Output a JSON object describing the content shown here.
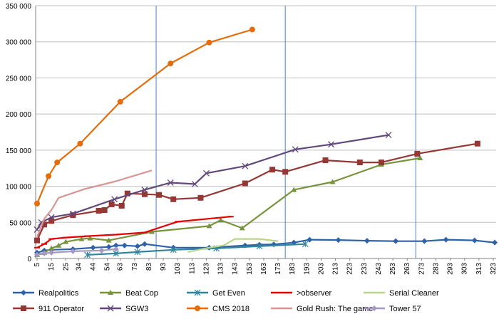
{
  "chart_data": {
    "type": "line",
    "title": "",
    "xlabel": "",
    "ylabel": "",
    "xlim": [
      4,
      325
    ],
    "ylim": [
      0,
      350000
    ],
    "grid": {
      "horizontal": true,
      "vertical": false
    },
    "legend_position": "bottom",
    "x_ticks": [
      "5",
      "15",
      "25",
      "34",
      "44",
      "54",
      "63",
      "73",
      "83",
      "93",
      "103",
      "113",
      "123",
      "133",
      "143",
      "153",
      "163",
      "173",
      "183",
      "193",
      "203",
      "213",
      "223",
      "233",
      "243",
      "253",
      "263",
      "273",
      "283",
      "293",
      "303",
      "313",
      "323"
    ],
    "y_ticks": [
      "0",
      "50 000",
      "100 000",
      "150 000",
      "200 000",
      "250 000",
      "300 000",
      "350 000"
    ],
    "reference_lines_x": [
      88,
      178,
      269
    ],
    "series": [
      {
        "name": "Realpolitics",
        "color": "#2E62A8",
        "marker": "diamond",
        "points": [
          [
            5,
            8000
          ],
          [
            10,
            11000
          ],
          [
            15,
            12000
          ],
          [
            30,
            13000
          ],
          [
            44,
            15000
          ],
          [
            55,
            16000
          ],
          [
            60,
            18000
          ],
          [
            66,
            18000
          ],
          [
            75,
            17000
          ],
          [
            80,
            20000
          ],
          [
            100,
            15000
          ],
          [
            125,
            15000
          ],
          [
            150,
            18000
          ],
          [
            160,
            19000
          ],
          [
            170,
            19500
          ],
          [
            184,
            22000
          ],
          [
            195,
            26000
          ],
          [
            215,
            25500
          ],
          [
            235,
            24500
          ],
          [
            255,
            24000
          ],
          [
            275,
            24000
          ],
          [
            290,
            26000
          ],
          [
            310,
            25000
          ],
          [
            324,
            22000
          ]
        ]
      },
      {
        "name": "Beat Cop",
        "color": "#77933C",
        "marker": "triangle",
        "points": [
          [
            5,
            5000
          ],
          [
            10,
            8000
          ],
          [
            15,
            14000
          ],
          [
            20,
            18000
          ],
          [
            25,
            23000
          ],
          [
            36,
            27000
          ],
          [
            42,
            28000
          ],
          [
            55,
            25000
          ],
          [
            85,
            37000
          ],
          [
            125,
            45000
          ],
          [
            133,
            53000
          ],
          [
            148,
            42000
          ],
          [
            184,
            95000
          ],
          [
            211,
            106000
          ],
          [
            245,
            130000
          ],
          [
            272,
            139000
          ]
        ]
      },
      {
        "name": "Get Even",
        "color": "#31859C",
        "marker": "asterisk",
        "points": [
          [
            40,
            5000
          ],
          [
            60,
            7000
          ],
          [
            75,
            9000
          ],
          [
            100,
            12000
          ],
          [
            130,
            14000
          ],
          [
            160,
            17000
          ],
          [
            192,
            20000
          ]
        ]
      },
      {
        "name": ">observer",
        "color": "#E60000",
        "marker": "dash",
        "points": [
          [
            5,
            15000
          ],
          [
            10,
            20000
          ],
          [
            15,
            27000
          ],
          [
            25,
            29000
          ],
          [
            40,
            31000
          ],
          [
            60,
            33000
          ],
          [
            80,
            36000
          ],
          [
            103,
            51000
          ],
          [
            140,
            58000
          ]
        ]
      },
      {
        "name": "Serial Cleaner",
        "color": "#B8D58A",
        "marker": "none",
        "points": [
          [
            110,
            9000
          ],
          [
            125,
            15000
          ],
          [
            135,
            18000
          ],
          [
            143,
            27000
          ],
          [
            160,
            27000
          ],
          [
            173,
            24000
          ]
        ]
      },
      {
        "name": "911 Operator",
        "color": "#953735",
        "marker": "square",
        "points": [
          [
            5,
            25000
          ],
          [
            10,
            47000
          ],
          [
            15,
            52000
          ],
          [
            30,
            60000
          ],
          [
            48,
            66000
          ],
          [
            52,
            67000
          ],
          [
            57,
            75000
          ],
          [
            64,
            73000
          ],
          [
            68,
            90000
          ],
          [
            80,
            89000
          ],
          [
            90,
            88000
          ],
          [
            100,
            82000
          ],
          [
            119,
            84000
          ],
          [
            150,
            104000
          ],
          [
            169,
            123000
          ],
          [
            178,
            120000
          ],
          [
            206,
            136000
          ],
          [
            230,
            133000
          ],
          [
            245,
            133000
          ],
          [
            270,
            145000
          ],
          [
            312,
            159000
          ]
        ]
      },
      {
        "name": "SGW3",
        "color": "#60497A",
        "marker": "x",
        "points": [
          [
            5,
            40000
          ],
          [
            8,
            50000
          ],
          [
            15,
            57000
          ],
          [
            30,
            62000
          ],
          [
            59,
            82000
          ],
          [
            80,
            95000
          ],
          [
            98,
            105000
          ],
          [
            115,
            103000
          ],
          [
            123,
            118000
          ],
          [
            150,
            128000
          ],
          [
            185,
            151000
          ],
          [
            210,
            158000
          ],
          [
            250,
            171000
          ]
        ]
      },
      {
        "name": "CMS 2018",
        "color": "#E46C0A",
        "marker": "circle",
        "points": [
          [
            5,
            76000
          ],
          [
            13,
            114000
          ],
          [
            19,
            133000
          ],
          [
            35,
            159000
          ],
          [
            63,
            217000
          ],
          [
            98,
            270000
          ],
          [
            125,
            299000
          ],
          [
            155,
            317000
          ]
        ]
      },
      {
        "name": "Gold Rush: The game",
        "color": "#D99594",
        "marker": "none",
        "points": [
          [
            5,
            30000
          ],
          [
            10,
            55000
          ],
          [
            15,
            67000
          ],
          [
            20,
            84000
          ],
          [
            38,
            96000
          ],
          [
            60,
            107000
          ],
          [
            80,
            119000
          ],
          [
            85,
            122000
          ]
        ]
      },
      {
        "name": "Tower 57",
        "color": "#A798C2",
        "marker": "diamond",
        "points": [
          [
            5,
            5000
          ],
          [
            10,
            7000
          ],
          [
            15,
            8000
          ],
          [
            30,
            10000
          ],
          [
            50,
            11000
          ],
          [
            60,
            13000
          ]
        ]
      }
    ]
  }
}
